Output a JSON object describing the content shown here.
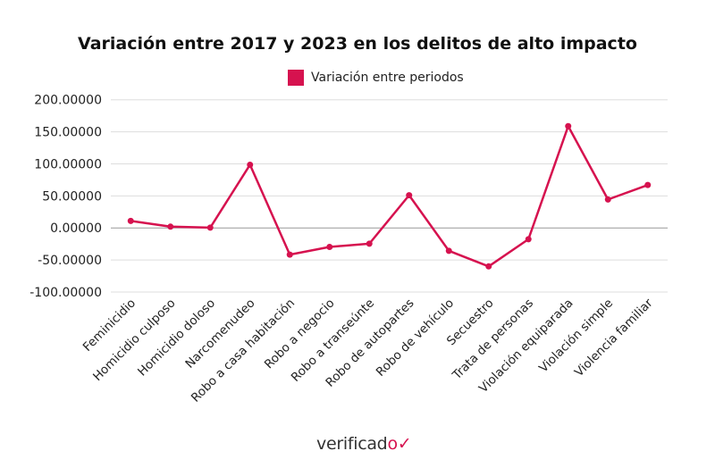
{
  "chart_data": {
    "type": "line",
    "title": "Variación entre 2017 y 2023 en los delitos de alto impacto",
    "legend": {
      "position": "top",
      "entries": [
        "Variación entre periodos"
      ]
    },
    "categories": [
      "Feminicidio",
      "Homicidio culposo",
      "Homicidio doloso",
      "Narcomenudeo",
      "Robo a casa habitación",
      "Robo a negocio",
      "Robo a transeúnte",
      "Robo de autopartes",
      "Robo de vehículo",
      "Secuestro",
      "Trata de personas",
      "Violación equiparada",
      "Violación simple",
      "Violencia familiar"
    ],
    "series": [
      {
        "name": "Variación entre periodos",
        "color": "#d6124f",
        "values": [
          11,
          2,
          0.5,
          98.6,
          -41.7,
          -29.6,
          -24.6,
          51,
          -35.7,
          -60,
          -17.6,
          158.8,
          44.4,
          67
        ]
      }
    ],
    "ylim": [
      -100,
      200
    ],
    "yticks": [
      -100,
      -50,
      0,
      50,
      100,
      150,
      200
    ],
    "ytick_labels": [
      "-100.00000",
      "-50.00000",
      "0.00000",
      "50.00000",
      "100.00000",
      "150.00000",
      "200.00000"
    ],
    "grid": true,
    "xlabel": "",
    "ylabel": ""
  },
  "logo": {
    "text": "verificado"
  }
}
